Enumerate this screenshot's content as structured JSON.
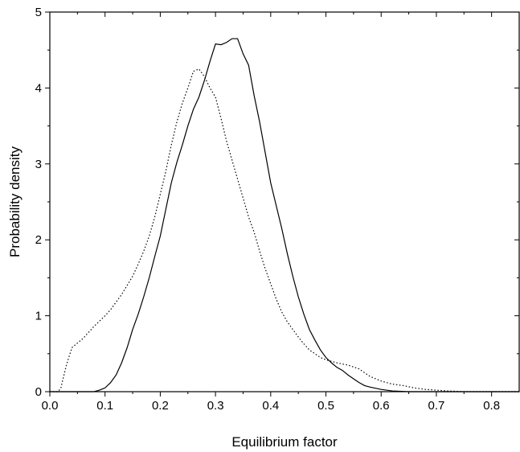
{
  "chart_data": {
    "type": "line",
    "title": "",
    "xlabel": "Equilibrium factor",
    "ylabel": "Probability density",
    "xlim": [
      0.0,
      0.85
    ],
    "ylim": [
      0,
      5
    ],
    "x_ticks": [
      0.0,
      0.1,
      0.2,
      0.3,
      0.4,
      0.5,
      0.6,
      0.7,
      0.8
    ],
    "x_tick_labels": [
      "0.0",
      "0.1",
      "0.2",
      "0.3",
      "0.4",
      "0.5",
      "0.6",
      "0.7",
      "0.8"
    ],
    "y_ticks": [
      0,
      1,
      2,
      3,
      4,
      5
    ],
    "y_tick_labels": [
      "0",
      "1",
      "2",
      "3",
      "4",
      "5"
    ],
    "grid": false,
    "legend": "none",
    "series": [
      {
        "style": "solid",
        "color": "#000000",
        "points": [
          [
            0.0,
            0.0
          ],
          [
            0.08,
            0.0
          ],
          [
            0.09,
            0.02
          ],
          [
            0.1,
            0.05
          ],
          [
            0.11,
            0.12
          ],
          [
            0.12,
            0.22
          ],
          [
            0.13,
            0.38
          ],
          [
            0.14,
            0.58
          ],
          [
            0.15,
            0.82
          ],
          [
            0.16,
            1.02
          ],
          [
            0.17,
            1.25
          ],
          [
            0.18,
            1.5
          ],
          [
            0.19,
            1.78
          ],
          [
            0.2,
            2.05
          ],
          [
            0.21,
            2.4
          ],
          [
            0.22,
            2.75
          ],
          [
            0.23,
            3.02
          ],
          [
            0.24,
            3.25
          ],
          [
            0.25,
            3.5
          ],
          [
            0.26,
            3.72
          ],
          [
            0.27,
            3.88
          ],
          [
            0.28,
            4.1
          ],
          [
            0.29,
            4.35
          ],
          [
            0.3,
            4.58
          ],
          [
            0.31,
            4.57
          ],
          [
            0.32,
            4.6
          ],
          [
            0.33,
            4.65
          ],
          [
            0.34,
            4.65
          ],
          [
            0.35,
            4.45
          ],
          [
            0.36,
            4.3
          ],
          [
            0.37,
            3.9
          ],
          [
            0.38,
            3.55
          ],
          [
            0.39,
            3.15
          ],
          [
            0.4,
            2.75
          ],
          [
            0.41,
            2.45
          ],
          [
            0.42,
            2.15
          ],
          [
            0.43,
            1.82
          ],
          [
            0.44,
            1.52
          ],
          [
            0.45,
            1.25
          ],
          [
            0.46,
            1.02
          ],
          [
            0.47,
            0.82
          ],
          [
            0.48,
            0.68
          ],
          [
            0.49,
            0.55
          ],
          [
            0.5,
            0.45
          ],
          [
            0.51,
            0.38
          ],
          [
            0.52,
            0.32
          ],
          [
            0.53,
            0.28
          ],
          [
            0.54,
            0.22
          ],
          [
            0.55,
            0.17
          ],
          [
            0.56,
            0.12
          ],
          [
            0.57,
            0.08
          ],
          [
            0.58,
            0.06
          ],
          [
            0.6,
            0.03
          ],
          [
            0.62,
            0.01
          ],
          [
            0.65,
            0.0
          ],
          [
            0.85,
            0.0
          ]
        ]
      },
      {
        "style": "dotted",
        "color": "#000000",
        "points": [
          [
            0.0,
            0.0
          ],
          [
            0.015,
            0.0
          ],
          [
            0.02,
            0.05
          ],
          [
            0.03,
            0.35
          ],
          [
            0.04,
            0.58
          ],
          [
            0.05,
            0.64
          ],
          [
            0.06,
            0.7
          ],
          [
            0.07,
            0.78
          ],
          [
            0.08,
            0.86
          ],
          [
            0.09,
            0.93
          ],
          [
            0.1,
            1.0
          ],
          [
            0.11,
            1.08
          ],
          [
            0.12,
            1.18
          ],
          [
            0.13,
            1.28
          ],
          [
            0.14,
            1.4
          ],
          [
            0.15,
            1.52
          ],
          [
            0.16,
            1.68
          ],
          [
            0.17,
            1.85
          ],
          [
            0.18,
            2.05
          ],
          [
            0.19,
            2.3
          ],
          [
            0.2,
            2.6
          ],
          [
            0.21,
            2.9
          ],
          [
            0.22,
            3.25
          ],
          [
            0.23,
            3.55
          ],
          [
            0.24,
            3.8
          ],
          [
            0.25,
            4.0
          ],
          [
            0.26,
            4.22
          ],
          [
            0.27,
            4.25
          ],
          [
            0.28,
            4.15
          ],
          [
            0.29,
            4.0
          ],
          [
            0.3,
            3.88
          ],
          [
            0.31,
            3.6
          ],
          [
            0.32,
            3.3
          ],
          [
            0.33,
            3.05
          ],
          [
            0.34,
            2.8
          ],
          [
            0.35,
            2.55
          ],
          [
            0.36,
            2.3
          ],
          [
            0.37,
            2.1
          ],
          [
            0.38,
            1.85
          ],
          [
            0.39,
            1.62
          ],
          [
            0.4,
            1.42
          ],
          [
            0.41,
            1.22
          ],
          [
            0.42,
            1.05
          ],
          [
            0.43,
            0.92
          ],
          [
            0.44,
            0.82
          ],
          [
            0.45,
            0.72
          ],
          [
            0.46,
            0.63
          ],
          [
            0.47,
            0.55
          ],
          [
            0.48,
            0.5
          ],
          [
            0.49,
            0.45
          ],
          [
            0.5,
            0.42
          ],
          [
            0.52,
            0.38
          ],
          [
            0.54,
            0.35
          ],
          [
            0.56,
            0.3
          ],
          [
            0.58,
            0.2
          ],
          [
            0.6,
            0.14
          ],
          [
            0.62,
            0.1
          ],
          [
            0.64,
            0.08
          ],
          [
            0.66,
            0.05
          ],
          [
            0.68,
            0.03
          ],
          [
            0.7,
            0.02
          ],
          [
            0.72,
            0.01
          ],
          [
            0.75,
            0.0
          ],
          [
            0.85,
            0.0
          ]
        ]
      }
    ]
  }
}
